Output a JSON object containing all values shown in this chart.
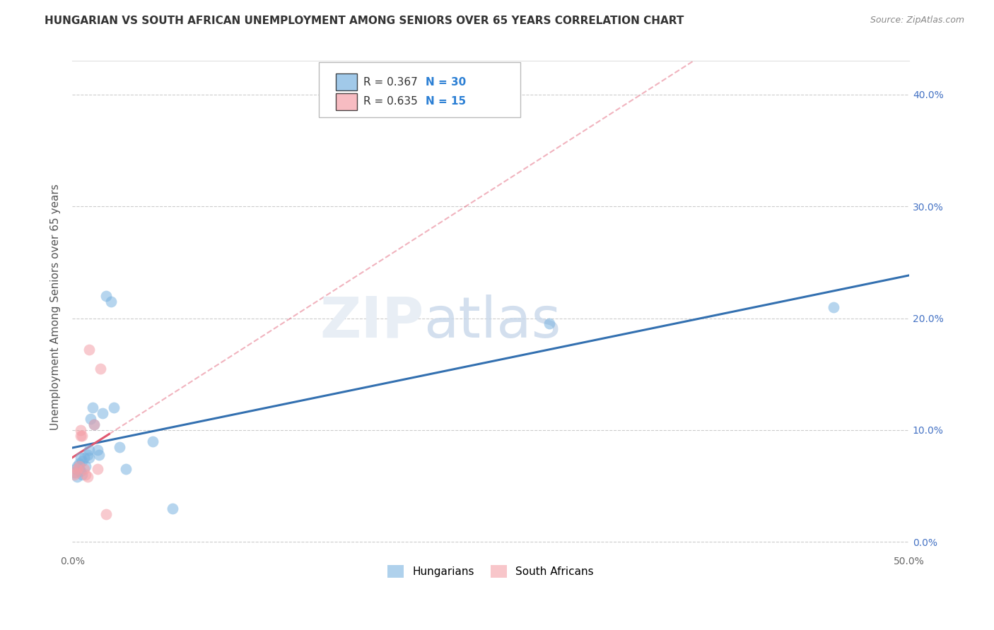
{
  "title": "HUNGARIAN VS SOUTH AFRICAN UNEMPLOYMENT AMONG SENIORS OVER 65 YEARS CORRELATION CHART",
  "source": "Source: ZipAtlas.com",
  "ylabel": "Unemployment Among Seniors over 65 years",
  "xlim": [
    0.0,
    0.5
  ],
  "ylim": [
    -0.01,
    0.43
  ],
  "x_ticks": [
    0.0,
    0.1,
    0.2,
    0.3,
    0.4,
    0.5
  ],
  "y_ticks": [
    0.0,
    0.1,
    0.2,
    0.3,
    0.4
  ],
  "x_tick_labels": [
    "0.0%",
    "",
    "",
    "",
    "",
    "50.0%"
  ],
  "y_tick_labels_left": [
    "",
    "",
    "",
    "",
    ""
  ],
  "y_tick_labels_right": [
    "0.0%",
    "10.0%",
    "20.0%",
    "30.0%",
    "40.0%"
  ],
  "hungarian_x": [
    0.001,
    0.002,
    0.003,
    0.003,
    0.004,
    0.004,
    0.005,
    0.005,
    0.006,
    0.006,
    0.007,
    0.008,
    0.009,
    0.01,
    0.01,
    0.011,
    0.012,
    0.013,
    0.015,
    0.016,
    0.018,
    0.02,
    0.023,
    0.025,
    0.028,
    0.032,
    0.048,
    0.06,
    0.285,
    0.455
  ],
  "hungarian_y": [
    0.062,
    0.065,
    0.058,
    0.068,
    0.065,
    0.07,
    0.063,
    0.075,
    0.06,
    0.072,
    0.075,
    0.068,
    0.078,
    0.082,
    0.075,
    0.11,
    0.12,
    0.105,
    0.082,
    0.078,
    0.115,
    0.22,
    0.215,
    0.12,
    0.085,
    0.065,
    0.09,
    0.03,
    0.195,
    0.21
  ],
  "sa_x": [
    0.001,
    0.002,
    0.003,
    0.004,
    0.005,
    0.005,
    0.006,
    0.007,
    0.008,
    0.009,
    0.01,
    0.013,
    0.015,
    0.017,
    0.02
  ],
  "sa_y": [
    0.06,
    0.062,
    0.065,
    0.068,
    0.095,
    0.1,
    0.095,
    0.065,
    0.06,
    0.058,
    0.172,
    0.105,
    0.065,
    0.155,
    0.025
  ],
  "hungarian_R": 0.367,
  "hungarian_N": 30,
  "sa_R": 0.635,
  "sa_N": 15,
  "hungarian_color": "#7ab3e0",
  "sa_color": "#f4a0a8",
  "hungarian_line_color": "#3370b0",
  "sa_line_color": "#e05870",
  "background_color": "#ffffff",
  "grid_color": "#cccccc",
  "right_tick_color": "#4472c4",
  "left_tick_color": "#aaaaaa"
}
